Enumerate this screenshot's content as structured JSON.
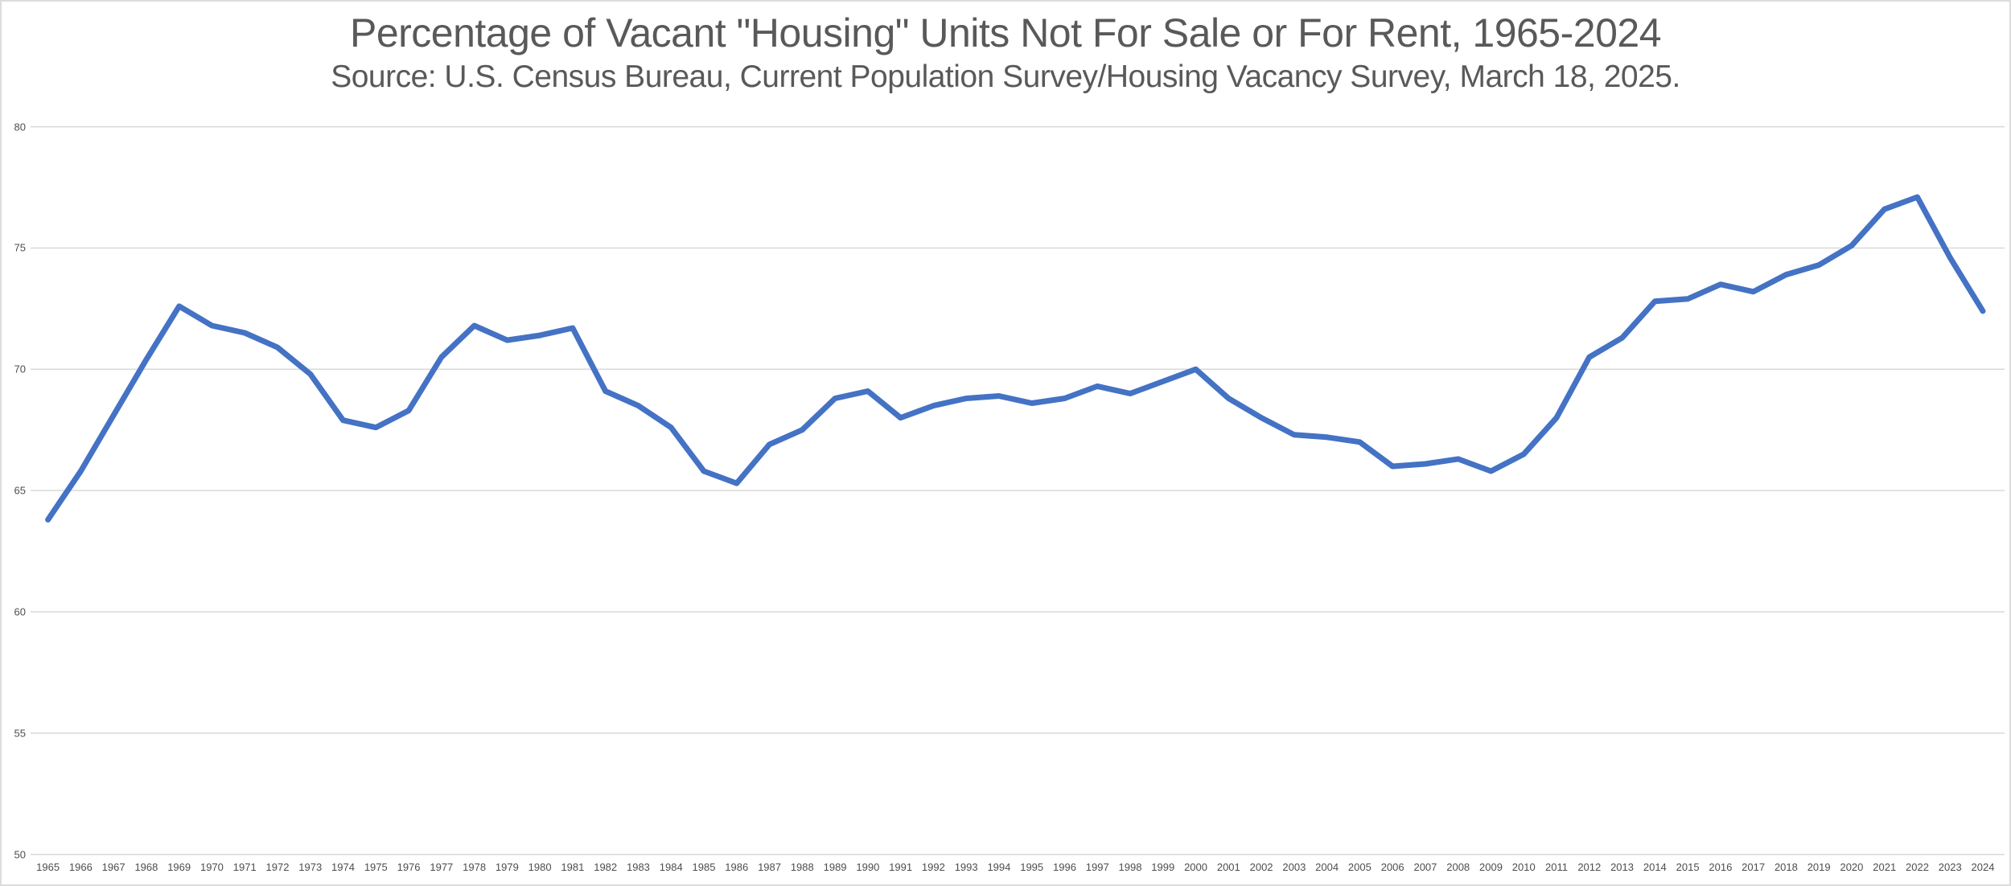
{
  "page": {
    "background": "#ffffff",
    "frame_border_color": "#dcdcdc"
  },
  "chart_data": {
    "type": "line",
    "title": "Percentage of Vacant \"Housing\" Units Not For Sale or For Rent, 1965-2024",
    "subtitle": "Source: U.S. Census Bureau, Current Population Survey/Housing Vacancy Survey, March 18, 2025.",
    "x": [
      1965,
      1966,
      1967,
      1968,
      1969,
      1970,
      1971,
      1972,
      1973,
      1974,
      1975,
      1976,
      1977,
      1978,
      1979,
      1980,
      1981,
      1982,
      1983,
      1984,
      1985,
      1986,
      1987,
      1988,
      1989,
      1990,
      1991,
      1992,
      1993,
      1994,
      1995,
      1996,
      1997,
      1998,
      1999,
      2000,
      2001,
      2002,
      2003,
      2004,
      2005,
      2006,
      2007,
      2008,
      2009,
      2010,
      2011,
      2012,
      2013,
      2014,
      2015,
      2016,
      2017,
      2018,
      2019,
      2020,
      2021,
      2022,
      2023,
      2024
    ],
    "series": [
      {
        "name": "Percent of vacant housing units not for sale or for rent",
        "values": [
          63.8,
          65.8,
          68.1,
          70.4,
          72.6,
          71.8,
          71.5,
          70.9,
          69.8,
          67.9,
          67.6,
          68.3,
          70.5,
          71.8,
          71.2,
          71.4,
          71.7,
          69.1,
          68.5,
          67.6,
          65.8,
          65.3,
          66.9,
          67.5,
          68.8,
          69.1,
          68.0,
          68.5,
          68.8,
          68.9,
          68.6,
          68.8,
          69.3,
          69.0,
          69.5,
          70.0,
          68.8,
          68.0,
          67.3,
          67.2,
          67.0,
          66.0,
          66.1,
          66.3,
          65.8,
          66.5,
          68.0,
          70.5,
          71.3,
          72.8,
          72.9,
          73.5,
          73.2,
          73.9,
          74.3,
          75.1,
          76.6,
          77.1,
          74.6,
          72.4
        ]
      }
    ],
    "xlabel": "",
    "ylabel": "",
    "ylim": [
      50,
      80
    ],
    "yticks": [
      50,
      55,
      60,
      65,
      70,
      75,
      80
    ],
    "grid": "horizontal",
    "legend": "none",
    "line_color": "#4472C4",
    "gridline_color": "#d9d9d9",
    "axis_label_color": "#4d4d4d",
    "title_color": "#595959"
  }
}
